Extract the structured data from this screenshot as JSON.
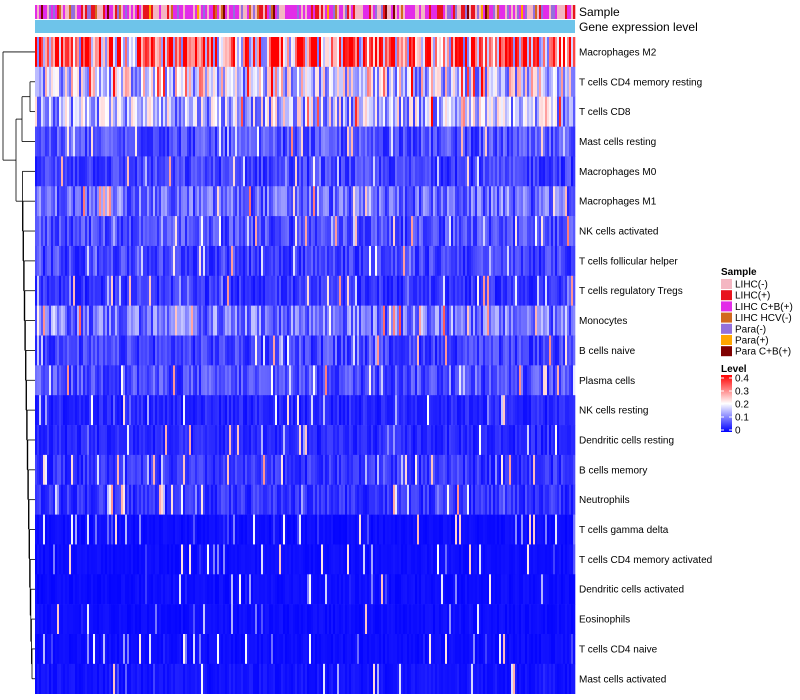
{
  "chart_data": {
    "type": "heatmap",
    "annotations": [
      {
        "name": "Sample"
      },
      {
        "name": "Gene expression level"
      }
    ],
    "rows": [
      {
        "label": "Macrophages M2",
        "mean": 0.29
      },
      {
        "label": "T cells CD4 memory resting",
        "mean": 0.17
      },
      {
        "label": "T cells CD8",
        "mean": 0.15
      },
      {
        "label": "Mast cells resting",
        "mean": 0.06
      },
      {
        "label": "Macrophages M0",
        "mean": 0.05
      },
      {
        "label": "Macrophages M1",
        "mean": 0.08
      },
      {
        "label": "NK cells activated",
        "mean": 0.06
      },
      {
        "label": "T cells follicular helper",
        "mean": 0.05
      },
      {
        "label": "T cells regulatory  Tregs",
        "mean": 0.04
      },
      {
        "label": "Monocytes",
        "mean": 0.09
      },
      {
        "label": "B cells naive",
        "mean": 0.05
      },
      {
        "label": "Plasma cells",
        "mean": 0.06
      },
      {
        "label": "NK cells resting",
        "mean": 0.03
      },
      {
        "label": "Dendritic cells resting",
        "mean": 0.03
      },
      {
        "label": "B cells memory",
        "mean": 0.04
      },
      {
        "label": "Neutrophils",
        "mean": 0.04
      },
      {
        "label": "T cells gamma delta",
        "mean": 0.01
      },
      {
        "label": "T cells CD4 memory activated",
        "mean": 0.01
      },
      {
        "label": "Dendritic cells activated",
        "mean": 0.01
      },
      {
        "label": "Eosinophils",
        "mean": 0.01
      },
      {
        "label": "T cells CD4 naive",
        "mean": 0.01
      },
      {
        "label": "Mast cells activated",
        "mean": 0.015
      }
    ],
    "sample_legend": {
      "title": "Sample",
      "items": [
        {
          "label": "LIHC(-)",
          "color": "#f4b6c2"
        },
        {
          "label": "LIHC(+)",
          "color": "#e8141e"
        },
        {
          "label": "LIHC C+B(+)",
          "color": "#e22ce8"
        },
        {
          "label": "LIHC HCV(-)",
          "color": "#d2691e"
        },
        {
          "label": "Para(-)",
          "color": "#9370db"
        },
        {
          "label": "Para(+)",
          "color": "#ffa500"
        },
        {
          "label": "Para C+B(+)",
          "color": "#800000"
        }
      ]
    },
    "level_legend": {
      "title": "Level",
      "min": 0,
      "max": 0.4,
      "ticks": [
        "0.4",
        "0.3",
        "0.2",
        "0.1",
        "0"
      ],
      "colors": [
        "#0000ff",
        "#ffffff",
        "#ff0000"
      ]
    },
    "gene_expression_color": "#6ec4ea"
  }
}
